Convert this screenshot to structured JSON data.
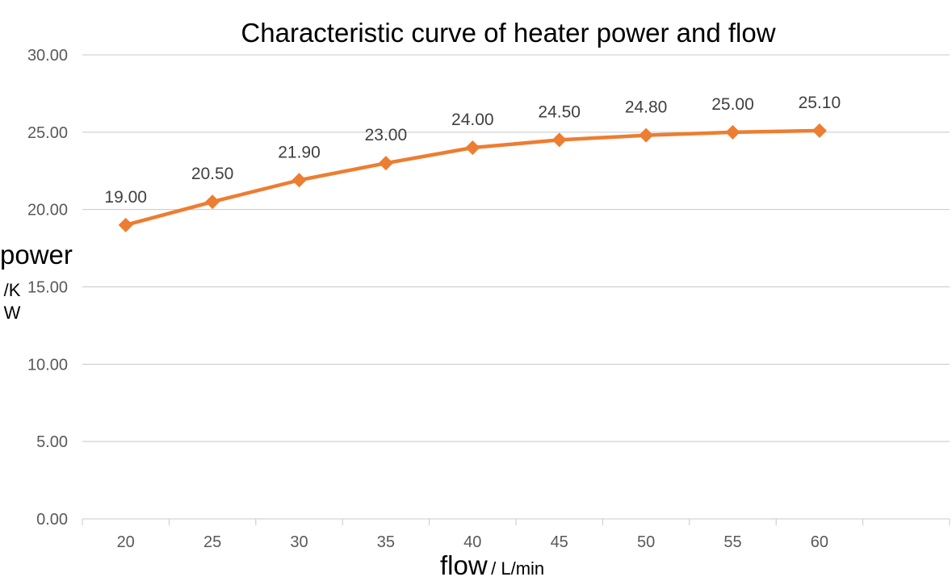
{
  "chart_data": {
    "type": "line",
    "title": "Characteristic curve of heater power and flow",
    "xlabel": "flow",
    "xlabel_unit": "/  L/min",
    "ylabel": "power",
    "ylabel_unit": "/KW",
    "categories": [
      "20",
      "25",
      "30",
      "35",
      "40",
      "45",
      "50",
      "55",
      "60"
    ],
    "series": [
      {
        "values": [
          19.0,
          20.5,
          21.9,
          23.0,
          24.0,
          24.5,
          24.8,
          25.0,
          25.1
        ],
        "data_labels": [
          "19.00",
          "20.50",
          "21.90",
          "23.00",
          "24.00",
          "24.50",
          "24.80",
          "25.00",
          "25.10"
        ],
        "color": "#ED7D31",
        "marker": "diamond"
      }
    ],
    "yticks": [
      "0.00",
      "5.00",
      "10.00",
      "15.00",
      "20.00",
      "25.00",
      "30.00"
    ],
    "ylim": [
      0,
      30
    ],
    "grid": true,
    "legend": "none"
  }
}
